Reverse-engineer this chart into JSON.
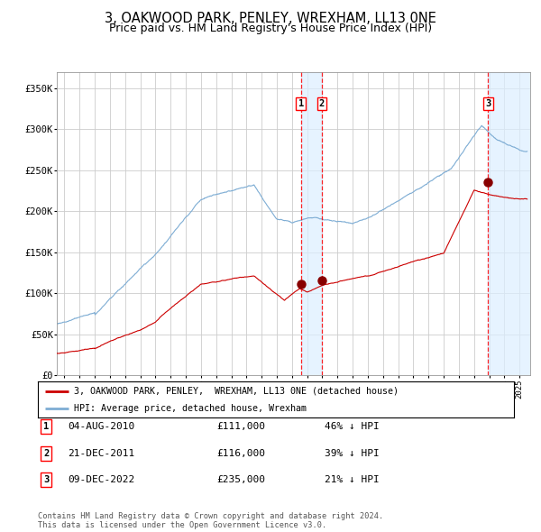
{
  "title": "3, OAKWOOD PARK, PENLEY, WREXHAM, LL13 0NE",
  "subtitle": "Price paid vs. HM Land Registry's House Price Index (HPI)",
  "title_fontsize": 10.5,
  "subtitle_fontsize": 9,
  "ylabel_ticks": [
    "£0",
    "£50K",
    "£100K",
    "£150K",
    "£200K",
    "£250K",
    "£300K",
    "£350K"
  ],
  "ytick_values": [
    0,
    50000,
    100000,
    150000,
    200000,
    250000,
    300000,
    350000
  ],
  "ylim": [
    0,
    370000
  ],
  "xlim_start": 1994.5,
  "xlim_end": 2025.7,
  "hpi_color": "#7eadd4",
  "price_color": "#cc0000",
  "grid_color": "#cccccc",
  "bg_color": "#ffffff",
  "purchases": [
    {
      "date_dec": 2010.585,
      "price": 111000,
      "label": "1"
    },
    {
      "date_dec": 2011.97,
      "price": 116000,
      "label": "2"
    },
    {
      "date_dec": 2022.935,
      "price": 235000,
      "label": "3"
    }
  ],
  "legend_entries": [
    "3, OAKWOOD PARK, PENLEY,  WREXHAM, LL13 0NE (detached house)",
    "HPI: Average price, detached house, Wrexham"
  ],
  "table_rows": [
    {
      "num": "1",
      "date": "04-AUG-2010",
      "price": "£111,000",
      "hpi": "46% ↓ HPI"
    },
    {
      "num": "2",
      "date": "21-DEC-2011",
      "price": "£116,000",
      "hpi": "39% ↓ HPI"
    },
    {
      "num": "3",
      "date": "09-DEC-2022",
      "price": "£235,000",
      "hpi": "21% ↓ HPI"
    }
  ],
  "footnote": "Contains HM Land Registry data © Crown copyright and database right 2024.\nThis data is licensed under the Open Government Licence v3.0."
}
